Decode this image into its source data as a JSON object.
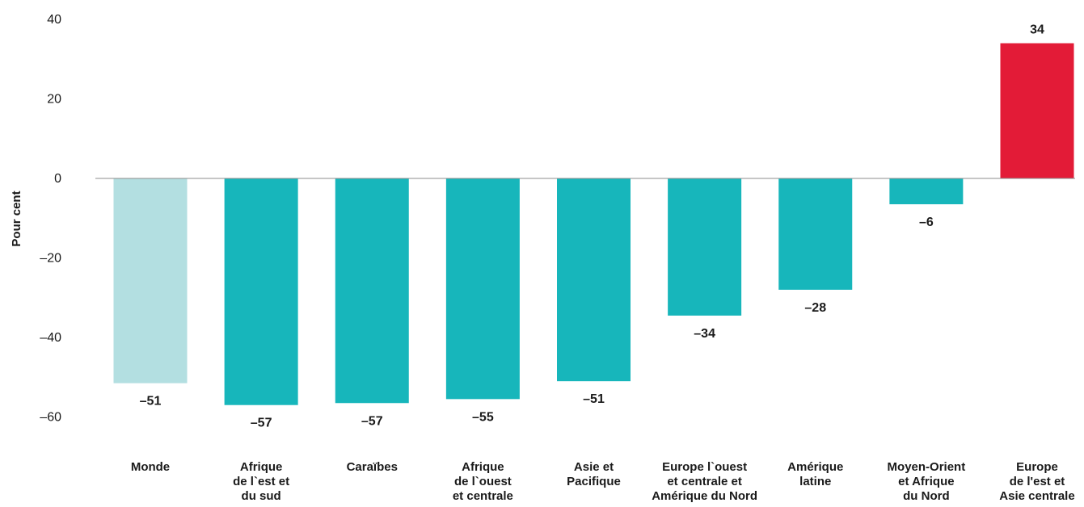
{
  "chart_data": {
    "type": "bar",
    "title": "",
    "xlabel": "",
    "ylabel": "Pour cent",
    "ylim": [
      -65,
      40
    ],
    "yticks": [
      40,
      20,
      0,
      -20,
      -40,
      -60
    ],
    "ytick_labels": [
      "40",
      "20",
      "0",
      "–20",
      "–40",
      "–60"
    ],
    "grid": false,
    "legend": "none",
    "categories": [
      [
        "Monde"
      ],
      [
        "Afrique",
        "de l`est et",
        "du sud"
      ],
      [
        "Caraïbes"
      ],
      [
        "Afrique",
        "de l`ouest",
        "et centrale"
      ],
      [
        "Asie et",
        "Pacifique"
      ],
      [
        "Europe l`ouest",
        "et centrale et",
        "Amérique du Nord"
      ],
      [
        "Amérique",
        "latine"
      ],
      [
        "Moyen-Orient",
        "et Afrique",
        "du Nord"
      ],
      [
        "Europe",
        "de l'est et",
        "Asie centrale"
      ]
    ],
    "values": [
      -51.5,
      -57,
      -56.5,
      -55.5,
      -51,
      -34.5,
      -28,
      -6.5,
      34
    ],
    "value_labels": [
      "–51",
      "–57",
      "–57",
      "–55",
      "–51",
      "–34",
      "–28",
      "–6",
      "34"
    ],
    "colors": [
      "#b3dfe1",
      "#17b6bb",
      "#17b6bb",
      "#17b6bb",
      "#17b6bb",
      "#17b6bb",
      "#17b6bb",
      "#17b6bb",
      "#e31b37"
    ]
  }
}
